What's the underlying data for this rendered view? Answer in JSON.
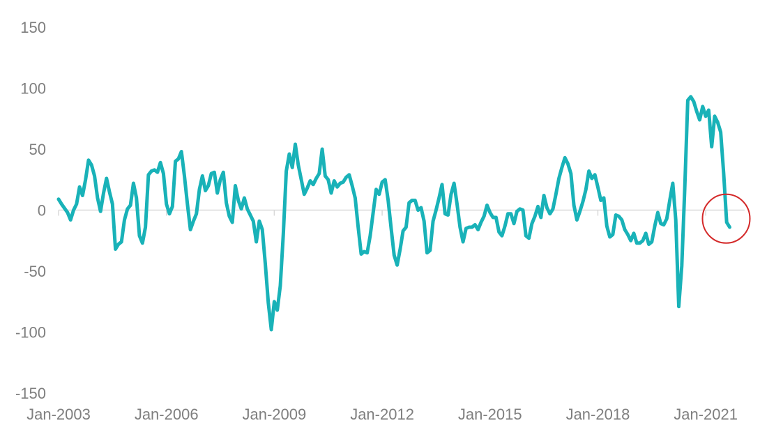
{
  "chart_data": {
    "type": "line",
    "title": "",
    "xlabel": "",
    "ylabel": "",
    "ylim": [
      -150,
      150
    ],
    "y_ticks": [
      150,
      100,
      50,
      0,
      -50,
      -100,
      -150
    ],
    "x_ticks": [
      {
        "label": "Jan-2003",
        "date": "2003-01"
      },
      {
        "label": "Jan-2006",
        "date": "2006-01"
      },
      {
        "label": "Jan-2009",
        "date": "2009-01"
      },
      {
        "label": "Jan-2012",
        "date": "2012-01"
      },
      {
        "label": "Jan-2015",
        "date": "2015-01"
      },
      {
        "label": "Jan-2018",
        "date": "2018-01"
      },
      {
        "label": "Jan-2021",
        "date": "2021-01"
      }
    ],
    "xlim": [
      "2003-01",
      "2022-02"
    ],
    "grid": false,
    "zero_line": true,
    "series": [
      {
        "color": "#19b2b8",
        "points": [
          [
            "2003-01",
            9
          ],
          [
            "2003-02",
            5
          ],
          [
            "2003-04",
            -2
          ],
          [
            "2003-05",
            -8
          ],
          [
            "2003-06",
            0
          ],
          [
            "2003-07",
            5
          ],
          [
            "2003-08",
            19
          ],
          [
            "2003-09",
            12
          ],
          [
            "2003-10",
            25
          ],
          [
            "2003-11",
            41
          ],
          [
            "2003-12",
            37
          ],
          [
            "2004-01",
            28
          ],
          [
            "2004-02",
            10
          ],
          [
            "2004-03",
            -1
          ],
          [
            "2004-04",
            14
          ],
          [
            "2004-05",
            26
          ],
          [
            "2004-06",
            15
          ],
          [
            "2004-07",
            5
          ],
          [
            "2004-08",
            -32
          ],
          [
            "2004-09",
            -28
          ],
          [
            "2004-10",
            -26
          ],
          [
            "2004-11",
            -8
          ],
          [
            "2004-12",
            1
          ],
          [
            "2005-01",
            4
          ],
          [
            "2005-02",
            22
          ],
          [
            "2005-03",
            10
          ],
          [
            "2005-04",
            -21
          ],
          [
            "2005-05",
            -27
          ],
          [
            "2005-06",
            -14
          ],
          [
            "2005-07",
            29
          ],
          [
            "2005-08",
            32
          ],
          [
            "2005-09",
            33
          ],
          [
            "2005-10",
            31
          ],
          [
            "2005-11",
            39
          ],
          [
            "2005-12",
            30
          ],
          [
            "2006-01",
            5
          ],
          [
            "2006-02",
            -3
          ],
          [
            "2006-03",
            3
          ],
          [
            "2006-04",
            40
          ],
          [
            "2006-05",
            42
          ],
          [
            "2006-06",
            48
          ],
          [
            "2006-07",
            28
          ],
          [
            "2006-08",
            5
          ],
          [
            "2006-09",
            -16
          ],
          [
            "2006-10",
            -9
          ],
          [
            "2006-11",
            -3
          ],
          [
            "2006-12",
            17
          ],
          [
            "2007-01",
            28
          ],
          [
            "2007-02",
            16
          ],
          [
            "2007-03",
            20
          ],
          [
            "2007-04",
            30
          ],
          [
            "2007-05",
            31
          ],
          [
            "2007-06",
            14
          ],
          [
            "2007-07",
            25
          ],
          [
            "2007-08",
            31
          ],
          [
            "2007-09",
            6
          ],
          [
            "2007-10",
            -5
          ],
          [
            "2007-11",
            -10
          ],
          [
            "2007-12",
            20
          ],
          [
            "2008-01",
            8
          ],
          [
            "2008-02",
            1
          ],
          [
            "2008-03",
            10
          ],
          [
            "2008-04",
            1
          ],
          [
            "2008-05",
            -4
          ],
          [
            "2008-06",
            -9
          ],
          [
            "2008-07",
            -26
          ],
          [
            "2008-08",
            -9
          ],
          [
            "2008-09",
            -16
          ],
          [
            "2008-10",
            -44
          ],
          [
            "2008-11",
            -76
          ],
          [
            "2008-12",
            -98
          ],
          [
            "2009-01",
            -75
          ],
          [
            "2009-02",
            -82
          ],
          [
            "2009-03",
            -62
          ],
          [
            "2009-04",
            -20
          ],
          [
            "2009-05",
            32
          ],
          [
            "2009-06",
            46
          ],
          [
            "2009-07",
            35
          ],
          [
            "2009-08",
            54
          ],
          [
            "2009-09",
            37
          ],
          [
            "2009-10",
            25
          ],
          [
            "2009-11",
            13
          ],
          [
            "2009-12",
            18
          ],
          [
            "2010-01",
            24
          ],
          [
            "2010-02",
            21
          ],
          [
            "2010-03",
            26
          ],
          [
            "2010-04",
            30
          ],
          [
            "2010-05",
            50
          ],
          [
            "2010-06",
            28
          ],
          [
            "2010-07",
            25
          ],
          [
            "2010-08",
            14
          ],
          [
            "2010-09",
            24
          ],
          [
            "2010-10",
            19
          ],
          [
            "2010-11",
            22
          ],
          [
            "2010-12",
            23
          ],
          [
            "2011-01",
            27
          ],
          [
            "2011-02",
            29
          ],
          [
            "2011-03",
            20
          ],
          [
            "2011-04",
            10
          ],
          [
            "2011-05",
            -14
          ],
          [
            "2011-06",
            -36
          ],
          [
            "2011-07",
            -34
          ],
          [
            "2011-08",
            -35
          ],
          [
            "2011-09",
            -21
          ],
          [
            "2011-10",
            -2
          ],
          [
            "2011-11",
            17
          ],
          [
            "2011-12",
            13
          ],
          [
            "2012-01",
            23
          ],
          [
            "2012-02",
            25
          ],
          [
            "2012-03",
            8
          ],
          [
            "2012-04",
            -15
          ],
          [
            "2012-05",
            -37
          ],
          [
            "2012-06",
            -45
          ],
          [
            "2012-07",
            -32
          ],
          [
            "2012-08",
            -17
          ],
          [
            "2012-09",
            -14
          ],
          [
            "2012-10",
            6
          ],
          [
            "2012-11",
            8
          ],
          [
            "2012-12",
            8
          ],
          [
            "2013-01",
            0
          ],
          [
            "2013-02",
            2
          ],
          [
            "2013-03",
            -9
          ],
          [
            "2013-04",
            -35
          ],
          [
            "2013-05",
            -33
          ],
          [
            "2013-06",
            -9
          ],
          [
            "2013-07",
            0
          ],
          [
            "2013-08",
            10
          ],
          [
            "2013-09",
            21
          ],
          [
            "2013-10",
            -3
          ],
          [
            "2013-11",
            -4
          ],
          [
            "2013-12",
            13
          ],
          [
            "2014-01",
            22
          ],
          [
            "2014-02",
            5
          ],
          [
            "2014-03",
            -14
          ],
          [
            "2014-04",
            -26
          ],
          [
            "2014-05",
            -15
          ],
          [
            "2014-06",
            -14
          ],
          [
            "2014-07",
            -14
          ],
          [
            "2014-08",
            -12
          ],
          [
            "2014-09",
            -16
          ],
          [
            "2014-10",
            -10
          ],
          [
            "2014-11",
            -5
          ],
          [
            "2014-12",
            4
          ],
          [
            "2015-01",
            -2
          ],
          [
            "2015-02",
            -6
          ],
          [
            "2015-03",
            -6
          ],
          [
            "2015-04",
            -18
          ],
          [
            "2015-05",
            -21
          ],
          [
            "2015-06",
            -13
          ],
          [
            "2015-07",
            -3
          ],
          [
            "2015-08",
            -3
          ],
          [
            "2015-09",
            -11
          ],
          [
            "2015-10",
            -1
          ],
          [
            "2015-11",
            1
          ],
          [
            "2015-12",
            0
          ],
          [
            "2016-01",
            -21
          ],
          [
            "2016-02",
            -23
          ],
          [
            "2016-03",
            -11
          ],
          [
            "2016-04",
            -5
          ],
          [
            "2016-05",
            3
          ],
          [
            "2016-06",
            -6
          ],
          [
            "2016-07",
            12
          ],
          [
            "2016-08",
            2
          ],
          [
            "2016-09",
            -3
          ],
          [
            "2016-10",
            1
          ],
          [
            "2016-11",
            13
          ],
          [
            "2016-12",
            26
          ],
          [
            "2017-01",
            35
          ],
          [
            "2017-02",
            43
          ],
          [
            "2017-03",
            38
          ],
          [
            "2017-04",
            30
          ],
          [
            "2017-05",
            4
          ],
          [
            "2017-06",
            -8
          ],
          [
            "2017-07",
            -1
          ],
          [
            "2017-08",
            7
          ],
          [
            "2017-09",
            17
          ],
          [
            "2017-10",
            32
          ],
          [
            "2017-11",
            26
          ],
          [
            "2017-12",
            29
          ],
          [
            "2018-01",
            19
          ],
          [
            "2018-02",
            8
          ],
          [
            "2018-03",
            10
          ],
          [
            "2018-04",
            -13
          ],
          [
            "2018-05",
            -22
          ],
          [
            "2018-06",
            -20
          ],
          [
            "2018-07",
            -4
          ],
          [
            "2018-08",
            -5
          ],
          [
            "2018-09",
            -8
          ],
          [
            "2018-10",
            -16
          ],
          [
            "2018-11",
            -20
          ],
          [
            "2018-12",
            -25
          ],
          [
            "2019-01",
            -19
          ],
          [
            "2019-02",
            -27
          ],
          [
            "2019-03",
            -27
          ],
          [
            "2019-04",
            -25
          ],
          [
            "2019-05",
            -19
          ],
          [
            "2019-06",
            -28
          ],
          [
            "2019-07",
            -26
          ],
          [
            "2019-08",
            -13
          ],
          [
            "2019-09",
            -2
          ],
          [
            "2019-10",
            -11
          ],
          [
            "2019-11",
            -12
          ],
          [
            "2019-12",
            -7
          ],
          [
            "2020-01",
            8
          ],
          [
            "2020-02",
            22
          ],
          [
            "2020-03",
            -8
          ],
          [
            "2020-04",
            -79
          ],
          [
            "2020-05",
            -46
          ],
          [
            "2020-06",
            18
          ],
          [
            "2020-07",
            90
          ],
          [
            "2020-08",
            93
          ],
          [
            "2020-09",
            89
          ],
          [
            "2020-10",
            81
          ],
          [
            "2020-11",
            74
          ],
          [
            "2020-12",
            85
          ],
          [
            "2021-01",
            77
          ],
          [
            "2021-02",
            82
          ],
          [
            "2021-03",
            52
          ],
          [
            "2021-04",
            77
          ],
          [
            "2021-05",
            72
          ],
          [
            "2021-06",
            64
          ],
          [
            "2021-07",
            30
          ],
          [
            "2021-08",
            -10
          ],
          [
            "2021-09",
            -14
          ]
        ]
      }
    ],
    "annotations": [
      {
        "type": "circle",
        "color": "#d42a2a",
        "at_date": "2021-09",
        "at_value": -7
      }
    ]
  }
}
